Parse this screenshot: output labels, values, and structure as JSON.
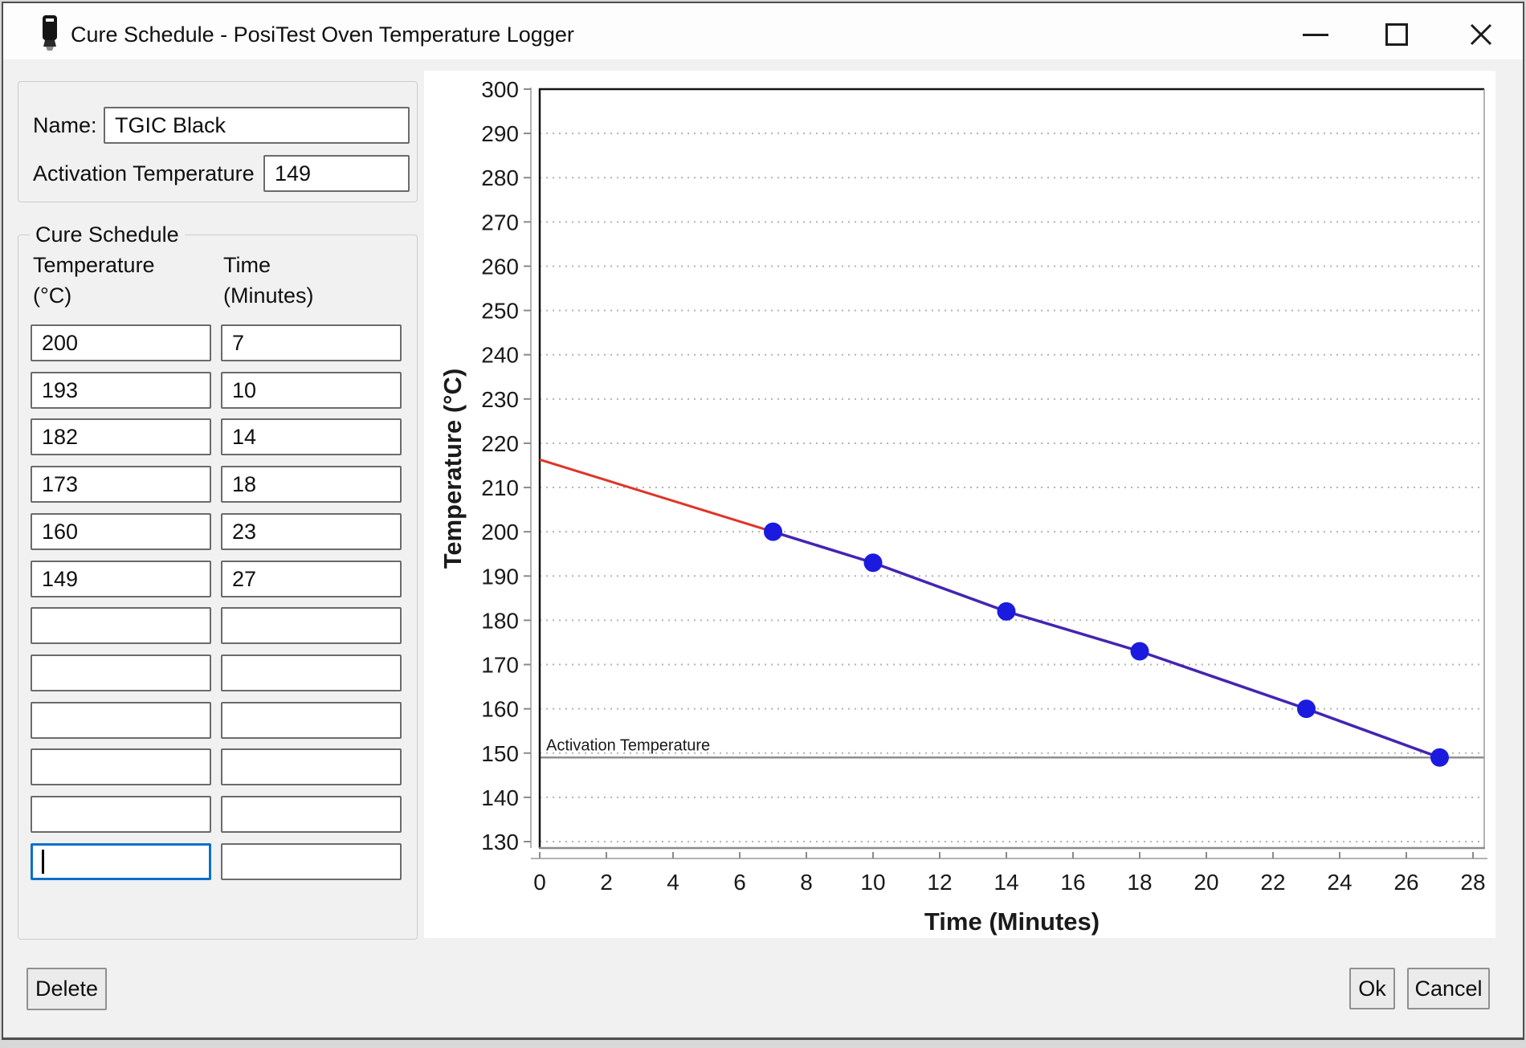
{
  "window": {
    "title": "Cure Schedule - PosiTest Oven Temperature Logger",
    "controls": {
      "minimize": "minimize",
      "maximize": "maximize",
      "close": "close"
    }
  },
  "form": {
    "name_label": "Name:",
    "name_value": "TGIC Black",
    "activation_label": "Activation Temperature",
    "activation_value": "149"
  },
  "schedule": {
    "legend": "Cure Schedule",
    "temp_header_line1": "Temperature",
    "temp_header_line2": "(°C)",
    "time_header_line1": "Time",
    "time_header_line2": "(Minutes)",
    "rows": [
      {
        "temp": "200",
        "time": "7",
        "focused": false
      },
      {
        "temp": "193",
        "time": "10",
        "focused": false
      },
      {
        "temp": "182",
        "time": "14",
        "focused": false
      },
      {
        "temp": "173",
        "time": "18",
        "focused": false
      },
      {
        "temp": "160",
        "time": "23",
        "focused": false
      },
      {
        "temp": "149",
        "time": "27",
        "focused": false
      },
      {
        "temp": "",
        "time": "",
        "focused": false
      },
      {
        "temp": "",
        "time": "",
        "focused": false
      },
      {
        "temp": "",
        "time": "",
        "focused": false
      },
      {
        "temp": "",
        "time": "",
        "focused": false
      },
      {
        "temp": "",
        "time": "",
        "focused": false
      },
      {
        "temp": "",
        "time": "",
        "focused": true
      }
    ]
  },
  "buttons": {
    "delete": "Delete",
    "ok": "Ok",
    "cancel": "Cancel"
  },
  "chart_data": {
    "type": "line",
    "xlabel": "Time (Minutes)",
    "ylabel": "Temperature (°C)",
    "xlim": [
      0,
      28
    ],
    "ylim": [
      130,
      300
    ],
    "xticks": [
      0,
      2,
      4,
      6,
      8,
      10,
      12,
      14,
      16,
      18,
      20,
      22,
      24,
      26,
      28
    ],
    "yticks": [
      130,
      140,
      150,
      160,
      170,
      180,
      190,
      200,
      210,
      220,
      230,
      240,
      250,
      260,
      270,
      280,
      290,
      300
    ],
    "grid": "horizontal-dotted",
    "legend_position": "none",
    "series": [
      {
        "name": "pre-activation-extrapolation",
        "color": "#df3428",
        "markers": false,
        "points": [
          [
            0,
            216.3
          ],
          [
            7,
            200
          ]
        ]
      },
      {
        "name": "cure-schedule",
        "color": "#4325b2",
        "marker_color": "#1b1be0",
        "markers": true,
        "points": [
          [
            7,
            200
          ],
          [
            10,
            193
          ],
          [
            14,
            182
          ],
          [
            18,
            173
          ],
          [
            23,
            160
          ],
          [
            27,
            149
          ]
        ]
      }
    ],
    "annotations": [
      {
        "type": "hline",
        "y": 149,
        "label": "Activation Temperature",
        "color": "#8f8f8f"
      }
    ]
  }
}
